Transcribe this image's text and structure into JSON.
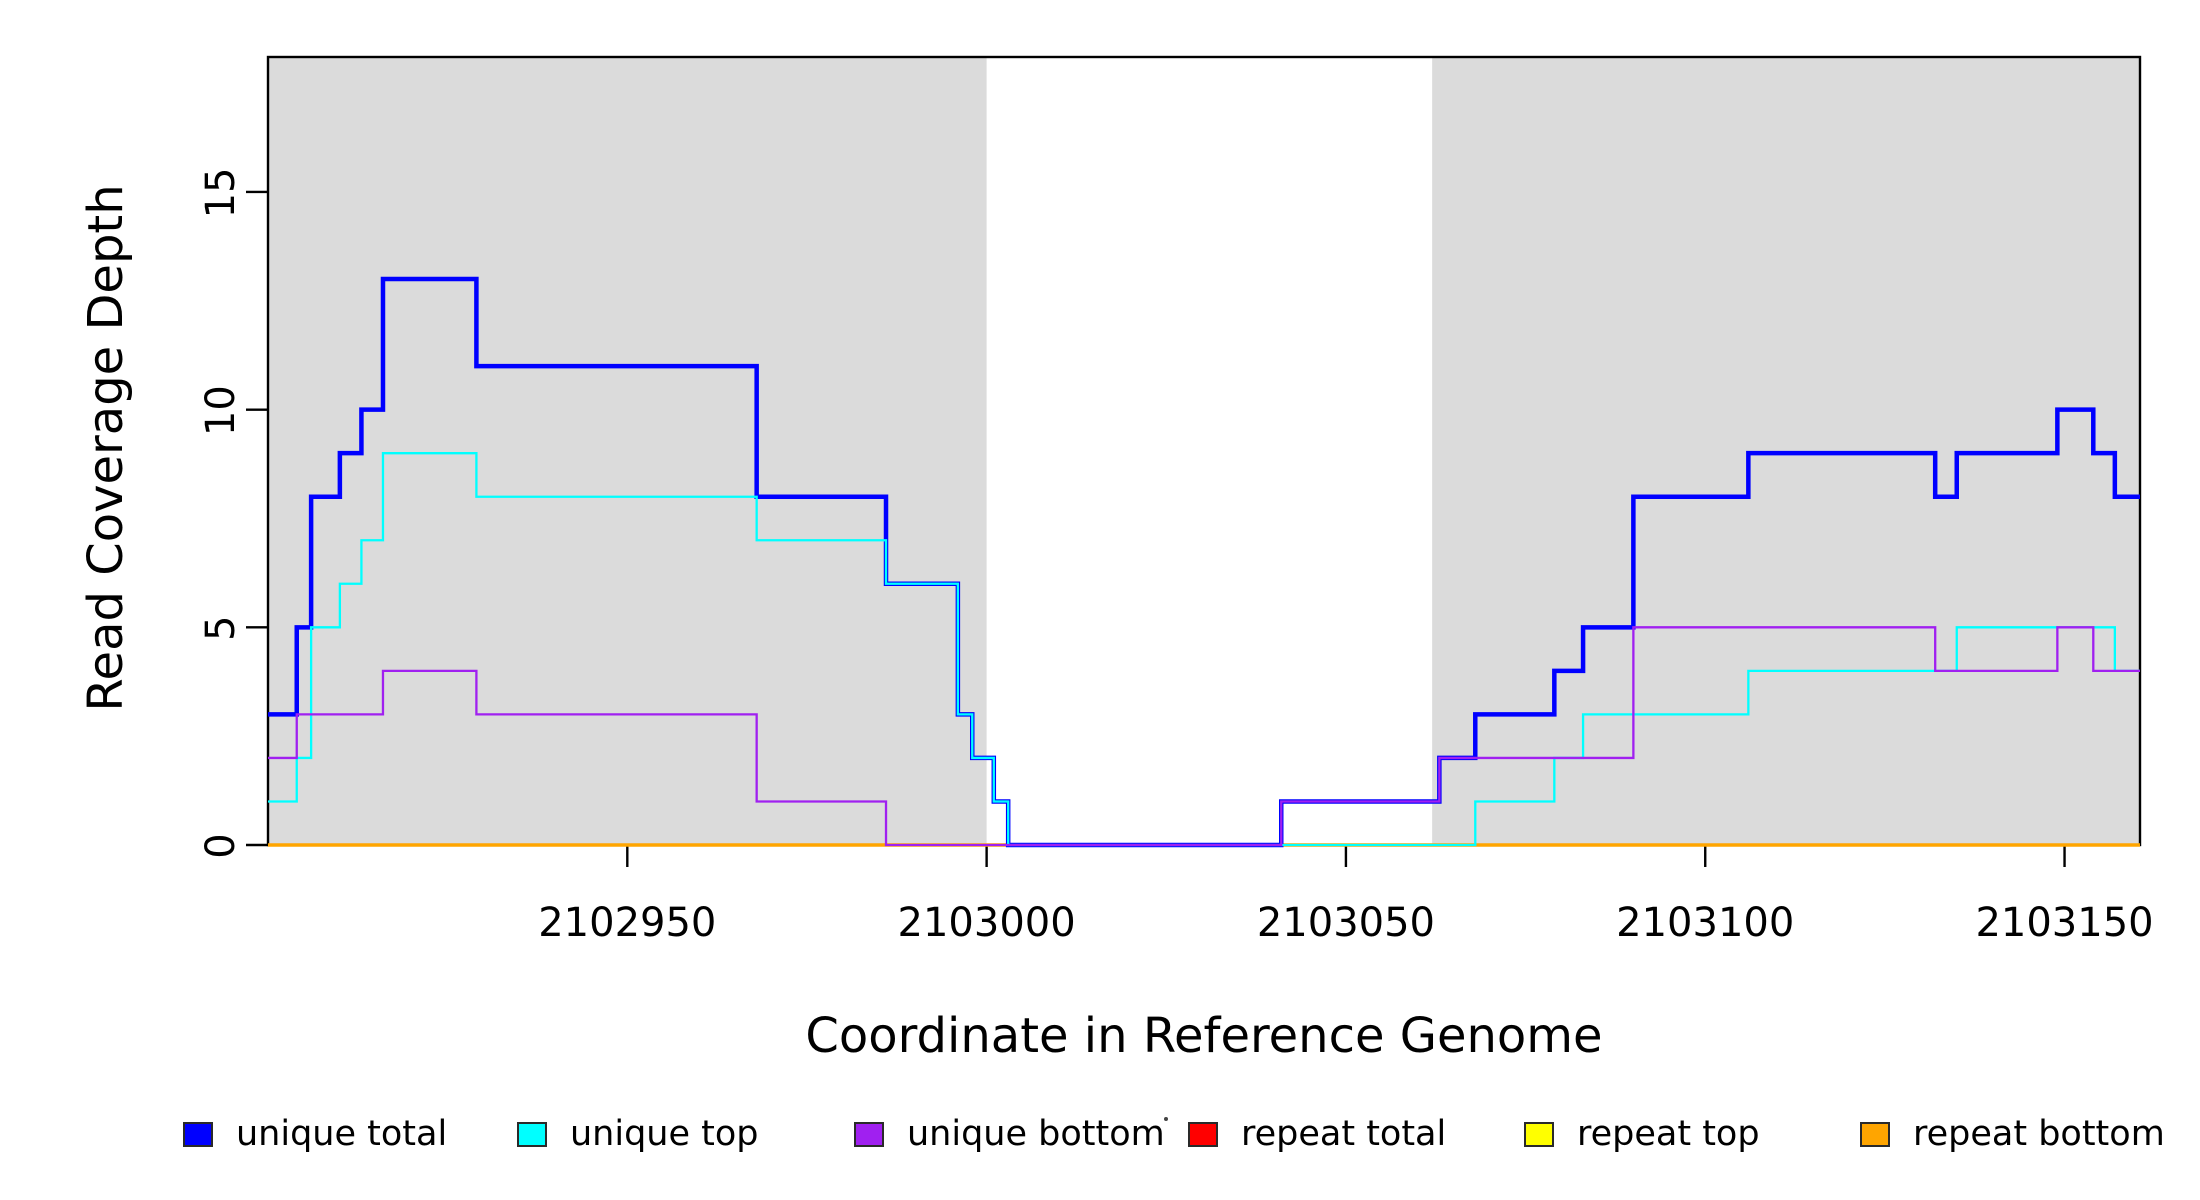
{
  "figure": {
    "background_color": "#FFFFFF",
    "shade_color": "#DBDBDB",
    "axis_color": "#000000"
  },
  "axes": {
    "x_label": "Coordinate in Reference Genome",
    "y_label": "Read Coverage Depth",
    "x_tick_labels": [
      "2102950",
      "2103000",
      "2103050",
      "2103100",
      "2103150"
    ],
    "y_tick_labels": [
      "0",
      "5",
      "10",
      "15"
    ]
  },
  "legend": {
    "items": [
      {
        "label": "unique total",
        "color": "#0000FF"
      },
      {
        "label": "unique top",
        "color": "#00FFFF"
      },
      {
        "label": "unique bottom",
        "color": "#A020F0"
      },
      {
        "label": "repeat total",
        "color": "#FF0000"
      },
      {
        "label": "repeat top",
        "color": "#FFFF00"
      },
      {
        "label": "repeat bottom",
        "color": "#FFA500"
      }
    ]
  },
  "chart_data": {
    "type": "line",
    "subtype": "step-after-coverage",
    "title": "",
    "xlabel": "Coordinate in Reference Genome",
    "ylabel": "Read Coverage Depth",
    "xlim": [
      2102900,
      2103160.5
    ],
    "ylim": [
      0,
      18.1
    ],
    "x_ticks": [
      2102950,
      2103000,
      2103050,
      2103100,
      2103150
    ],
    "y_ticks": [
      0,
      5,
      10,
      15
    ],
    "grid": false,
    "legend_position": "bottom",
    "shaded_regions": [
      {
        "x0": 2102900,
        "x1": 2103000,
        "color": "#DBDBDB"
      },
      {
        "x0": 2103062,
        "x1": 2103160.5,
        "color": "#DBDBDB"
      }
    ],
    "draw_order": [
      "repeat total",
      "repeat top",
      "repeat bottom",
      "unique total",
      "unique top",
      "unique bottom"
    ],
    "series": [
      {
        "name": "unique total",
        "color": "#0000FF",
        "line_width": 4.5,
        "steps": [
          [
            2102900,
            3
          ],
          [
            2102904,
            5
          ],
          [
            2102906,
            8
          ],
          [
            2102910,
            9
          ],
          [
            2102913,
            10
          ],
          [
            2102916,
            13
          ],
          [
            2102929,
            11
          ],
          [
            2102968,
            8
          ],
          [
            2102986,
            6
          ],
          [
            2102996,
            3
          ],
          [
            2102998,
            2
          ],
          [
            2103001,
            1
          ],
          [
            2103003,
            0
          ],
          [
            2103041,
            1
          ],
          [
            2103063,
            2
          ],
          [
            2103068,
            3
          ],
          [
            2103079,
            4
          ],
          [
            2103083,
            5
          ],
          [
            2103090,
            8
          ],
          [
            2103106,
            9
          ],
          [
            2103132,
            8
          ],
          [
            2103135,
            9
          ],
          [
            2103149,
            10
          ],
          [
            2103154,
            9
          ],
          [
            2103157,
            8
          ]
        ]
      },
      {
        "name": "unique top",
        "color": "#00FFFF",
        "line_width": 2.3,
        "steps": [
          [
            2102900,
            1
          ],
          [
            2102904,
            2
          ],
          [
            2102906,
            5
          ],
          [
            2102910,
            6
          ],
          [
            2102913,
            7
          ],
          [
            2102916,
            9
          ],
          [
            2102929,
            8
          ],
          [
            2102968,
            7
          ],
          [
            2102986,
            6
          ],
          [
            2102996,
            3
          ],
          [
            2102998,
            2
          ],
          [
            2103001,
            1
          ],
          [
            2103003,
            0
          ],
          [
            2103068,
            1
          ],
          [
            2103079,
            2
          ],
          [
            2103083,
            3
          ],
          [
            2103106,
            4
          ],
          [
            2103135,
            5
          ],
          [
            2103157,
            4
          ]
        ]
      },
      {
        "name": "unique bottom",
        "color": "#A020F0",
        "line_width": 2.3,
        "steps": [
          [
            2102900,
            2
          ],
          [
            2102904,
            3
          ],
          [
            2102916,
            4
          ],
          [
            2102929,
            3
          ],
          [
            2102968,
            1
          ],
          [
            2102986,
            0
          ],
          [
            2103041,
            1
          ],
          [
            2103063,
            2
          ],
          [
            2103090,
            5
          ],
          [
            2103132,
            4
          ],
          [
            2103149,
            5
          ],
          [
            2103154,
            4
          ]
        ]
      },
      {
        "name": "repeat total",
        "color": "#FF0000",
        "line_width": 2.3,
        "steps": [
          [
            2102900,
            0
          ]
        ]
      },
      {
        "name": "repeat top",
        "color": "#FFFF00",
        "line_width": 2.3,
        "steps": [
          [
            2102900,
            0
          ]
        ]
      },
      {
        "name": "repeat bottom",
        "color": "#FFA500",
        "line_width": 3.6,
        "steps": [
          [
            2102900,
            0
          ]
        ]
      }
    ]
  }
}
